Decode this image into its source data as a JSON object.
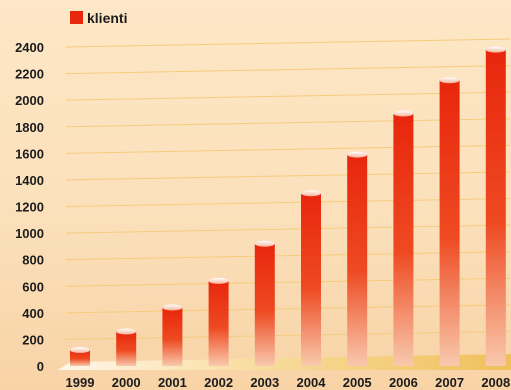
{
  "chart_data": {
    "type": "bar",
    "title": "",
    "xlabel": "",
    "ylabel": "",
    "categories": [
      "1999",
      "2000",
      "2001",
      "2002",
      "2003",
      "2004",
      "2005",
      "2006",
      "2007",
      "2008"
    ],
    "series": [
      {
        "name": "klienti",
        "values": [
          120,
          260,
          440,
          640,
          920,
          1300,
          1590,
          1900,
          2150,
          2380
        ]
      }
    ],
    "ylim": [
      0,
      2400
    ],
    "yticks": [
      0,
      200,
      400,
      600,
      800,
      1000,
      1200,
      1400,
      1600,
      1800,
      2000,
      2200,
      2400
    ],
    "grid": true,
    "legend_position": "top-left",
    "colors": {
      "bar": "#e8260c",
      "bar_fade": "#f7c2a8",
      "floor": "#f2c56a",
      "grid": "#f6cc7c",
      "background": "#fde6c4"
    }
  }
}
